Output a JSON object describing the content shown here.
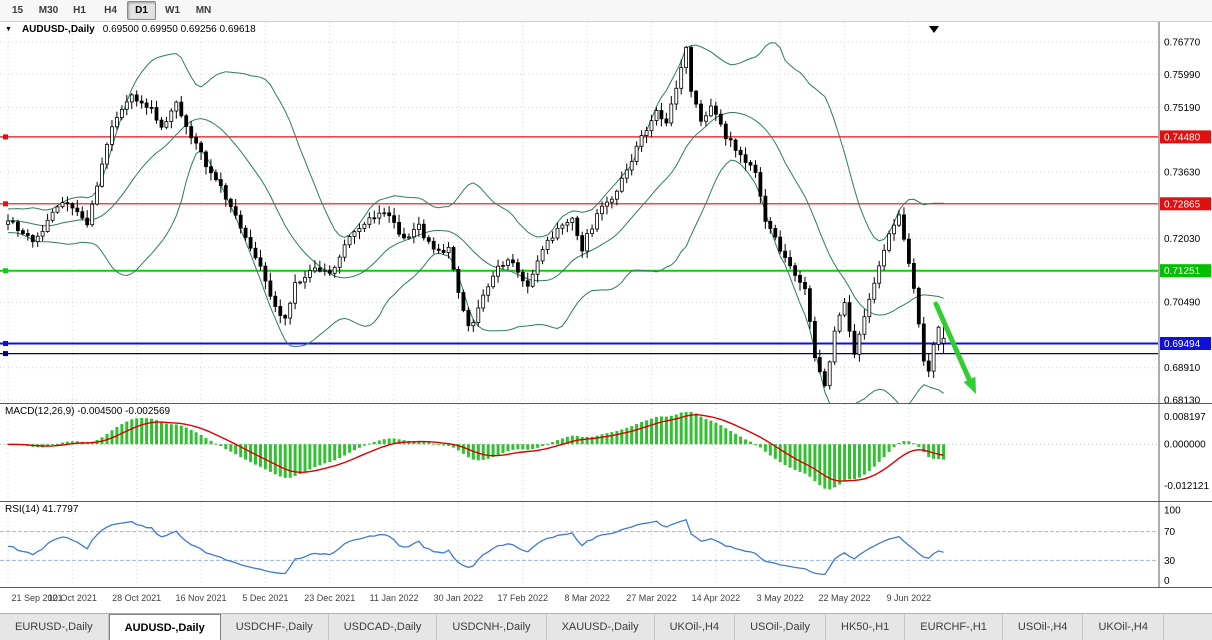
{
  "colors": {
    "band": "#2e7d5b",
    "candle_up_fill": "#ffffff",
    "candle_down_fill": "#000000",
    "candle_border": "#000000",
    "macd_hist": "#30c030",
    "macd_signal": "#dd0000",
    "rsi_line": "#3e7ad3",
    "rsi_level": "#9cb6da",
    "grid": "#d4d4d4",
    "arrow": "#32cd32"
  },
  "icons": {
    "dropdown": "▼"
  },
  "toolbar": {
    "timeframes": [
      {
        "label": "15",
        "active": false
      },
      {
        "label": "M30",
        "active": false
      },
      {
        "label": "H1",
        "active": false
      },
      {
        "label": "H4",
        "active": false
      },
      {
        "label": "D1",
        "active": true
      },
      {
        "label": "W1",
        "active": false
      },
      {
        "label": "MN",
        "active": false
      }
    ]
  },
  "main_chart": {
    "title": "AUDUSD-,Daily",
    "ohlc_text": "0.69500 0.69950 0.69256 0.69618",
    "axis_labels": [
      {
        "text": "0.76770",
        "price": 0.7677
      },
      {
        "text": "0.75990",
        "price": 0.7599
      },
      {
        "text": "0.75190",
        "price": 0.7519
      },
      {
        "text": "0.73630",
        "price": 0.7363
      },
      {
        "text": "0.72030",
        "price": 0.7203
      },
      {
        "text": "0.70490",
        "price": 0.7049
      },
      {
        "text": "0.68910",
        "price": 0.6891
      },
      {
        "text": "0.68130",
        "price": 0.6813
      }
    ],
    "badges": [
      {
        "text": "0.74480",
        "price": 0.7448,
        "bg": "#e01010"
      },
      {
        "text": "0.72865",
        "price": 0.72865,
        "bg": "#e01010"
      },
      {
        "text": "0.71251",
        "price": 0.71251,
        "bg": "#00c000"
      },
      {
        "text": "0.69494",
        "price": 0.69494,
        "bg": "#1010dc"
      }
    ],
    "hlines": [
      {
        "price": 0.7448,
        "color": "#e01010",
        "w": 1.2
      },
      {
        "price": 0.72865,
        "color": "#e01010",
        "w": 1.2
      },
      {
        "price": 0.71251,
        "color": "#00d800",
        "w": 2
      },
      {
        "price": 0.69494,
        "color": "#1010dc",
        "w": 2
      },
      {
        "price": 0.6925,
        "color": "#000080",
        "w": 1.2
      }
    ]
  },
  "macd_panel": {
    "title": "MACD(12,26,9) -0.004500 -0.002569",
    "axis_labels": [
      {
        "text": "0.008197",
        "value": 0.008197
      },
      {
        "text": "0.000000",
        "value": 0
      },
      {
        "text": "-0.012121",
        "value": -0.012121
      }
    ]
  },
  "rsi_panel": {
    "title": "RSI(14) 41.7797",
    "levels": [
      70,
      30
    ],
    "axis_labels": [
      {
        "text": "100",
        "value": 100
      },
      {
        "text": "70",
        "value": 70
      },
      {
        "text": "30",
        "value": 30
      },
      {
        "text": "0",
        "value": 0
      }
    ]
  },
  "date_axis": {
    "tick_step": 13,
    "labels": [
      "21 Sep 2021",
      "10 Oct 2021",
      "28 Oct 2021",
      "16 Nov 2021",
      "5 Dec 2021",
      "23 Dec 2021",
      "11 Jan 2022",
      "30 Jan 2022",
      "17 Feb 2022",
      "8 Mar 2022",
      "27 Mar 2022",
      "14 Apr 2022",
      "3 May 2022",
      "22 May 2022",
      "9 Jun 2022"
    ]
  },
  "tabs": [
    {
      "label": "EURUSD-,Daily",
      "active": false
    },
    {
      "label": "AUDUSD-,Daily",
      "active": true
    },
    {
      "label": "USDCHF-,Daily",
      "active": false
    },
    {
      "label": "USDCAD-,Daily",
      "active": false
    },
    {
      "label": "USDCNH-,Daily",
      "active": false
    },
    {
      "label": "XAUUSD-,Daily",
      "active": false
    },
    {
      "label": "UKOil-,H4",
      "active": false
    },
    {
      "label": "USOil-,Daily",
      "active": false
    },
    {
      "label": "HK50-,H1",
      "active": false
    },
    {
      "label": "EURCHF-,H1",
      "active": false
    },
    {
      "label": "USOil-,H4",
      "active": false
    },
    {
      "label": "UKOil-,H4",
      "active": false
    }
  ],
  "chart_data": {
    "type": "candlestick",
    "symbol": "AUDUSD",
    "timeframe": "Daily",
    "n_candles": 190,
    "price_range": [
      0.6813,
      0.7677
    ],
    "macd_range": [
      -0.0135,
      0.0095
    ],
    "indicators": {
      "bollinger": {
        "period": 20,
        "dev": 2
      },
      "macd": [
        12,
        26,
        9
      ],
      "rsi": 14
    },
    "last_candle": {
      "open": 0.695,
      "high": 0.6995,
      "low": 0.69256,
      "close": 0.69618
    },
    "close_anchors": [
      [
        0,
        0.7245
      ],
      [
        5,
        0.7195
      ],
      [
        11,
        0.729
      ],
      [
        16,
        0.724
      ],
      [
        21,
        0.747
      ],
      [
        25,
        0.755
      ],
      [
        29,
        0.7515
      ],
      [
        31,
        0.7475
      ],
      [
        34,
        0.7525
      ],
      [
        38,
        0.743
      ],
      [
        41,
        0.736
      ],
      [
        44,
        0.7305
      ],
      [
        48,
        0.72
      ],
      [
        51,
        0.714
      ],
      [
        53,
        0.706
      ],
      [
        56,
        0.7005
      ],
      [
        58,
        0.709
      ],
      [
        61,
        0.713
      ],
      [
        65,
        0.712
      ],
      [
        69,
        0.72
      ],
      [
        72,
        0.7245
      ],
      [
        76,
        0.727
      ],
      [
        80,
        0.72
      ],
      [
        83,
        0.723
      ],
      [
        86,
        0.717
      ],
      [
        89,
        0.718
      ],
      [
        91,
        0.707
      ],
      [
        93,
        0.6985
      ],
      [
        94,
        0.6995
      ],
      [
        96,
        0.706
      ],
      [
        99,
        0.714
      ],
      [
        102,
        0.7145
      ],
      [
        105,
        0.709
      ],
      [
        108,
        0.718
      ],
      [
        111,
        0.722
      ],
      [
        114,
        0.725
      ],
      [
        116,
        0.718
      ],
      [
        119,
        0.726
      ],
      [
        122,
        0.73
      ],
      [
        125,
        0.737
      ],
      [
        128,
        0.745
      ],
      [
        131,
        0.751
      ],
      [
        133,
        0.748
      ],
      [
        135,
        0.756
      ],
      [
        137,
        0.766
      ],
      [
        138,
        0.756
      ],
      [
        140,
        0.748
      ],
      [
        142,
        0.752
      ],
      [
        145,
        0.745
      ],
      [
        148,
        0.74
      ],
      [
        151,
        0.737
      ],
      [
        153,
        0.725
      ],
      [
        156,
        0.718
      ],
      [
        158,
        0.713
      ],
      [
        161,
        0.708
      ],
      [
        163,
        0.692
      ],
      [
        165,
        0.684
      ],
      [
        167,
        0.698
      ],
      [
        169,
        0.705
      ],
      [
        171,
        0.692
      ],
      [
        173,
        0.701
      ],
      [
        175,
        0.709
      ],
      [
        177,
        0.718
      ],
      [
        179,
        0.724
      ],
      [
        180,
        0.7265
      ],
      [
        181,
        0.72
      ],
      [
        182,
        0.715
      ],
      [
        183,
        0.708
      ],
      [
        184,
        0.7
      ],
      [
        185,
        0.69
      ],
      [
        186,
        0.6875
      ],
      [
        187,
        0.694
      ],
      [
        188,
        0.699
      ],
      [
        189,
        0.69618
      ]
    ]
  }
}
